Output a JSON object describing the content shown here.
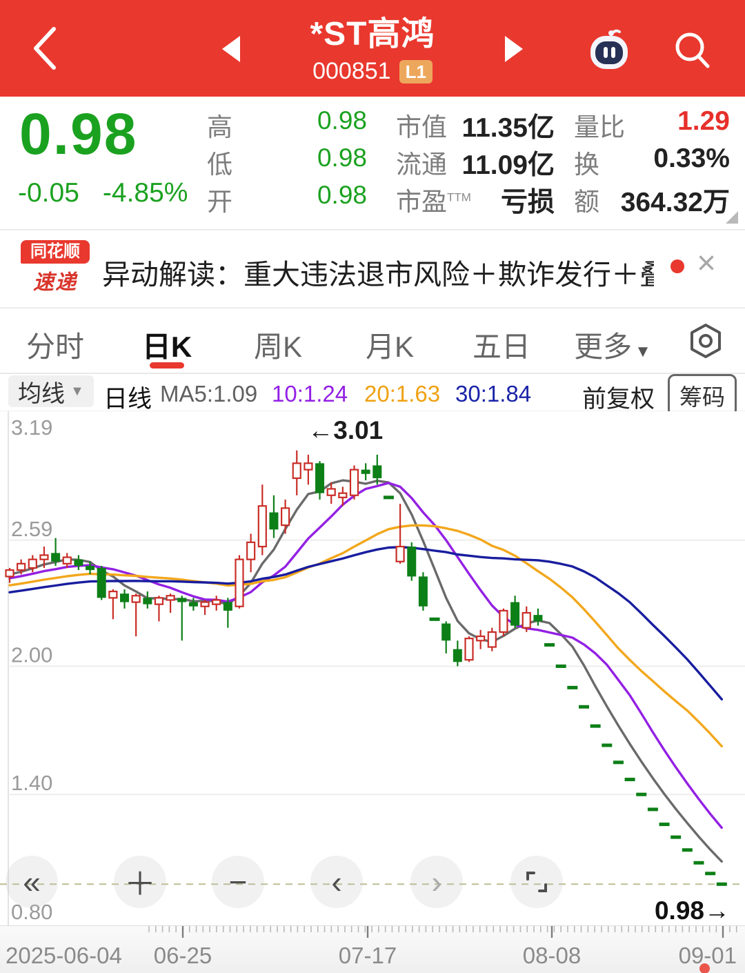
{
  "header": {
    "title": "*ST高鸿",
    "code": "000851",
    "badge": "L1"
  },
  "quote": {
    "price": "0.98",
    "change": "-0.05",
    "change_pct": "-4.85%",
    "col_price": [
      {
        "label": "高",
        "value": "0.98"
      },
      {
        "label": "低",
        "value": "0.98"
      },
      {
        "label": "开",
        "value": "0.98"
      }
    ],
    "col_cap": [
      {
        "label": "市值",
        "value": "11.35亿"
      },
      {
        "label": "流通",
        "value": "11.09亿"
      },
      {
        "label": "市盈",
        "sup": "TTM",
        "value": "亏损"
      }
    ],
    "col_vol": [
      {
        "label": "量比",
        "value": "1.29"
      },
      {
        "label": "换",
        "value": "0.33%"
      },
      {
        "label": "额",
        "value": "364.32万"
      }
    ]
  },
  "newsbar": {
    "logo_top": "同花顺",
    "logo_bottom": "速递",
    "text": "异动解读：重大违法退市风险＋欺诈发行＋叠...",
    "close": "×"
  },
  "tabs": {
    "items": [
      "分时",
      "日K",
      "周K",
      "月K",
      "五日",
      "更多"
    ],
    "active": "日K",
    "more_caret": "▼"
  },
  "mabar": {
    "avg_label": "均线",
    "caret": "▼",
    "period_label": "日线",
    "ma_items": [
      {
        "text": "MA5:1.09",
        "color": "#5f5f5f"
      },
      {
        "text": "10:1.24",
        "color": "#9320e4"
      },
      {
        "text": "20:1.63",
        "color": "#efa112"
      },
      {
        "text": "30:1.84",
        "color": "#1a23a8"
      }
    ],
    "adjust_label": "前复权",
    "chip_label": "筹码"
  },
  "chart_data": {
    "type": "candlestick",
    "title": "日K line chart",
    "ylim": [
      0.8,
      3.19
    ],
    "y_ticks": [
      "3.19",
      "2.59",
      "2.00",
      "1.40",
      "0.80"
    ],
    "y_tick_values": [
      3.19,
      2.59,
      2.0,
      1.4,
      0.8
    ],
    "y_gridlines": [
      2.59,
      2.0,
      1.4
    ],
    "x_tick_labels": [
      "2025-06-04",
      "06-25",
      "07-17",
      "08-08",
      "09-01"
    ],
    "annotation": {
      "text": "←3.01",
      "price": 3.01
    },
    "current_price": 0.98,
    "current_price_label": "0.98→",
    "ma_windows": [
      5,
      10,
      20,
      30
    ],
    "ma_colors": [
      "#6a6a6a",
      "#9320e4",
      "#f2a71c",
      "#181d9e"
    ],
    "up_color": "#c92d27",
    "down_color": "#0d7f17",
    "candles": [
      [
        2.42,
        2.46,
        2.39,
        2.45
      ],
      [
        2.45,
        2.5,
        2.43,
        2.48
      ],
      [
        2.46,
        2.52,
        2.44,
        2.5
      ],
      [
        2.5,
        2.56,
        2.46,
        2.52
      ],
      [
        2.53,
        2.6,
        2.47,
        2.49
      ],
      [
        2.48,
        2.53,
        2.46,
        2.51
      ],
      [
        2.5,
        2.52,
        2.45,
        2.47
      ],
      [
        2.47,
        2.49,
        2.43,
        2.45
      ],
      [
        2.46,
        2.47,
        2.31,
        2.32
      ],
      [
        2.32,
        2.36,
        2.22,
        2.35
      ],
      [
        2.34,
        2.36,
        2.27,
        2.3
      ],
      [
        2.3,
        2.34,
        2.14,
        2.33
      ],
      [
        2.32,
        2.35,
        2.27,
        2.29
      ],
      [
        2.29,
        2.33,
        2.21,
        2.32
      ],
      [
        2.31,
        2.34,
        2.25,
        2.33
      ],
      [
        2.32,
        2.33,
        2.12,
        2.3
      ],
      [
        2.3,
        2.32,
        2.26,
        2.28
      ],
      [
        2.28,
        2.31,
        2.24,
        2.3
      ],
      [
        2.29,
        2.33,
        2.26,
        2.31
      ],
      [
        2.3,
        2.32,
        2.18,
        2.26
      ],
      [
        2.28,
        2.52,
        2.27,
        2.5
      ],
      [
        2.5,
        2.62,
        2.44,
        2.58
      ],
      [
        2.56,
        2.85,
        2.52,
        2.75
      ],
      [
        2.72,
        2.8,
        2.6,
        2.64
      ],
      [
        2.66,
        2.78,
        2.62,
        2.74
      ],
      [
        2.88,
        3.01,
        2.8,
        2.95
      ],
      [
        2.92,
        2.99,
        2.85,
        2.95
      ],
      [
        2.95,
        2.96,
        2.78,
        2.81
      ],
      [
        2.8,
        2.86,
        2.76,
        2.83
      ],
      [
        2.79,
        2.84,
        2.75,
        2.81
      ],
      [
        2.8,
        2.94,
        2.78,
        2.92
      ],
      [
        2.92,
        2.95,
        2.87,
        2.9
      ],
      [
        2.94,
        2.99,
        2.85,
        2.88
      ],
      [
        2.79,
        2.79,
        2.79,
        2.79
      ],
      [
        2.49,
        2.76,
        2.48,
        2.56
      ],
      [
        2.56,
        2.58,
        2.4,
        2.42
      ],
      [
        2.42,
        2.44,
        2.26,
        2.28
      ],
      [
        2.22,
        2.22,
        2.22,
        2.22
      ],
      [
        2.2,
        2.21,
        2.06,
        2.12
      ],
      [
        2.08,
        2.12,
        2.0,
        2.02
      ],
      [
        2.03,
        2.14,
        2.02,
        2.13
      ],
      [
        2.12,
        2.17,
        2.08,
        2.14
      ],
      [
        2.09,
        2.18,
        2.07,
        2.16
      ],
      [
        2.16,
        2.27,
        2.14,
        2.26
      ],
      [
        2.3,
        2.33,
        2.18,
        2.19
      ],
      [
        2.18,
        2.28,
        2.16,
        2.25
      ],
      [
        2.24,
        2.27,
        2.19,
        2.21
      ],
      [
        2.1,
        2.1,
        2.1,
        2.1
      ],
      [
        2.0,
        2.0,
        2.0,
        2.0
      ],
      [
        1.9,
        1.9,
        1.9,
        1.9
      ],
      [
        1.81,
        1.81,
        1.81,
        1.81
      ],
      [
        1.72,
        1.72,
        1.72,
        1.72
      ],
      [
        1.63,
        1.63,
        1.63,
        1.63
      ],
      [
        1.55,
        1.55,
        1.55,
        1.55
      ],
      [
        1.47,
        1.47,
        1.47,
        1.47
      ],
      [
        1.4,
        1.4,
        1.4,
        1.4
      ],
      [
        1.33,
        1.33,
        1.33,
        1.33
      ],
      [
        1.26,
        1.26,
        1.26,
        1.26
      ],
      [
        1.2,
        1.2,
        1.2,
        1.2
      ],
      [
        1.14,
        1.14,
        1.14,
        1.14
      ],
      [
        1.08,
        1.08,
        1.08,
        1.08
      ],
      [
        1.03,
        1.03,
        1.03,
        1.03
      ],
      [
        0.98,
        0.98,
        0.98,
        0.98
      ]
    ]
  },
  "toolbar": {
    "rewind": "«",
    "zoom_in": "＋",
    "zoom_out": "−",
    "prev": "‹",
    "next": "›"
  }
}
